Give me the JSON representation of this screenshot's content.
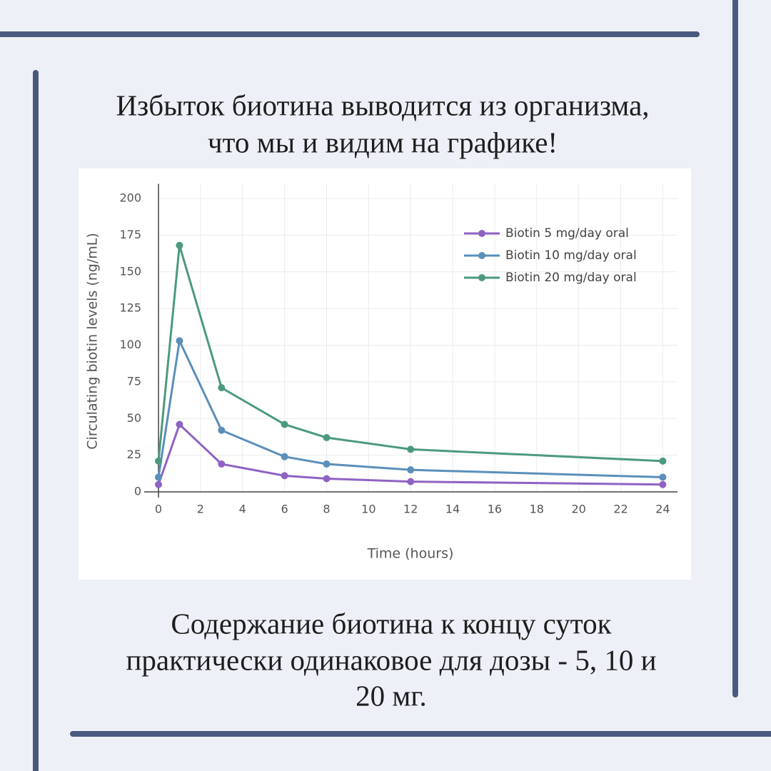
{
  "header": {
    "title_lines": [
      "Избыток биотина выводится из организма,",
      "что мы и видим на графике!"
    ]
  },
  "chart_data": {
    "type": "line",
    "x": [
      0,
      1,
      3,
      6,
      8,
      12,
      24
    ],
    "series": [
      {
        "name": "Biotin 5 mg/day oral",
        "color": "#8e63c4",
        "values": [
          5,
          46,
          19,
          11,
          9,
          7,
          5
        ]
      },
      {
        "name": "Biotin 10 mg/day oral",
        "color": "#5a8fba",
        "values": [
          10,
          103,
          42,
          24,
          19,
          15,
          10
        ]
      },
      {
        "name": "Biotin 20 mg/day oral",
        "color": "#4b9a7d",
        "values": [
          21,
          168,
          71,
          46,
          37,
          29,
          21
        ]
      }
    ],
    "x_label": "Time (hours)",
    "y_label": "Circulating biotin levels (ng/mL)",
    "xlim": [
      0,
      24.7
    ],
    "ylim": [
      0,
      210
    ],
    "xticks": [
      0,
      2,
      4,
      6,
      8,
      10,
      12,
      14,
      16,
      18,
      20,
      22,
      24
    ],
    "yticks": [
      0,
      25,
      50,
      75,
      100,
      125,
      150,
      175,
      200
    ],
    "grid": true,
    "legend": "top-right"
  },
  "footer": {
    "text_lines": [
      "Содержание биотина к концу суток",
      "практически одинаковое для дозы - 5, 10 и",
      "20 мг."
    ]
  }
}
